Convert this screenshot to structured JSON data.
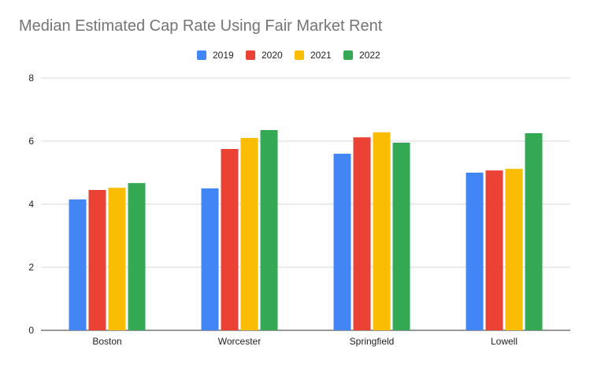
{
  "chart_data": {
    "type": "bar",
    "title": "Median Estimated Cap Rate Using Fair Market Rent",
    "xlabel": "",
    "ylabel": "",
    "categories": [
      "Boston",
      "Worcester",
      "Springfield",
      "Lowell"
    ],
    "series": [
      {
        "name": "2019",
        "color": "#4285f4",
        "values": [
          4.15,
          4.5,
          5.6,
          5.0
        ]
      },
      {
        "name": "2020",
        "color": "#ea4335",
        "values": [
          4.45,
          5.75,
          6.12,
          5.07
        ]
      },
      {
        "name": "2021",
        "color": "#fbbc04",
        "values": [
          4.52,
          6.1,
          6.28,
          5.12
        ]
      },
      {
        "name": "2022",
        "color": "#34a853",
        "values": [
          4.67,
          6.35,
          5.95,
          6.25
        ]
      }
    ],
    "ylim": [
      0,
      8
    ],
    "yticks": [
      "0",
      "2",
      "4",
      "6",
      "8"
    ],
    "grid": true,
    "legend_position": "top-center"
  }
}
